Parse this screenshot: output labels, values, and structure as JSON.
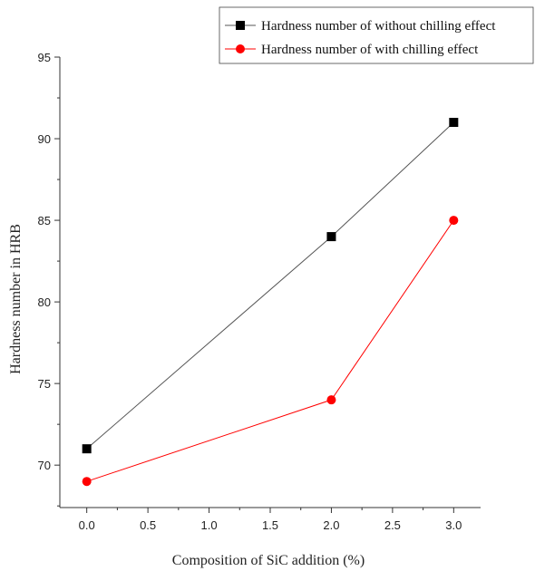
{
  "chart_data": {
    "type": "line",
    "xlabel": "Composition of SiC addition (%)",
    "ylabel": "Hardness number in HRB",
    "xlim": [
      -0.22,
      3.22
    ],
    "ylim": [
      67.4,
      95
    ],
    "xticks": [
      0.0,
      0.5,
      1.0,
      1.5,
      2.0,
      2.5,
      3.0
    ],
    "xtick_labels": [
      "0.0",
      "0.5",
      "1.0",
      "1.5",
      "2.0",
      "2.5",
      "3.0"
    ],
    "yticks": [
      70,
      75,
      80,
      85,
      90,
      95
    ],
    "ytick_labels": [
      "70",
      "75",
      "80",
      "85",
      "90",
      "95"
    ],
    "grid": false,
    "legend_position": "top-right",
    "series": [
      {
        "name": "Hardness number of without chilling effect",
        "x": [
          0.0,
          2.0,
          3.0
        ],
        "values": [
          71,
          84,
          91
        ],
        "color": "#000000",
        "line_color": "#555555",
        "marker": "square"
      },
      {
        "name": "Hardness number of with chilling effect",
        "x": [
          0.0,
          2.0,
          3.0
        ],
        "values": [
          69,
          74,
          85
        ],
        "color": "#ff0000",
        "line_color": "#ff0000",
        "marker": "circle"
      }
    ]
  }
}
